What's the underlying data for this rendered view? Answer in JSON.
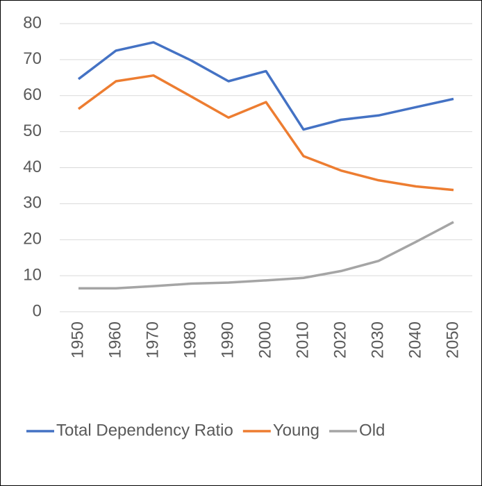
{
  "chart_data": {
    "type": "line",
    "categories": [
      "1950",
      "1960",
      "1970",
      "1980",
      "1990",
      "2000",
      "2010",
      "2020",
      "2030",
      "2040",
      "2050"
    ],
    "series": [
      {
        "name": "Total Dependency Ratio",
        "color": "#4472c4",
        "values": [
          64.6,
          72.5,
          74.8,
          69.8,
          64,
          66.8,
          50.6,
          53.3,
          54.5,
          56.8,
          59.1
        ]
      },
      {
        "name": "Young",
        "color": "#ed7d31",
        "values": [
          56.3,
          64,
          65.6,
          59.8,
          53.9,
          58.2,
          43.2,
          39.2,
          36.5,
          34.8,
          33.8
        ]
      },
      {
        "name": "Old",
        "color": "#a5a5a5",
        "values": [
          6.5,
          6.5,
          7.1,
          7.8,
          8.1,
          8.7,
          9.4,
          11.3,
          14.1,
          19.4,
          24.9
        ]
      }
    ],
    "ylim": [
      0,
      80
    ],
    "yticks": [
      0,
      10,
      20,
      30,
      40,
      50,
      60,
      70,
      80
    ],
    "grid": true,
    "legend": "bottom"
  }
}
